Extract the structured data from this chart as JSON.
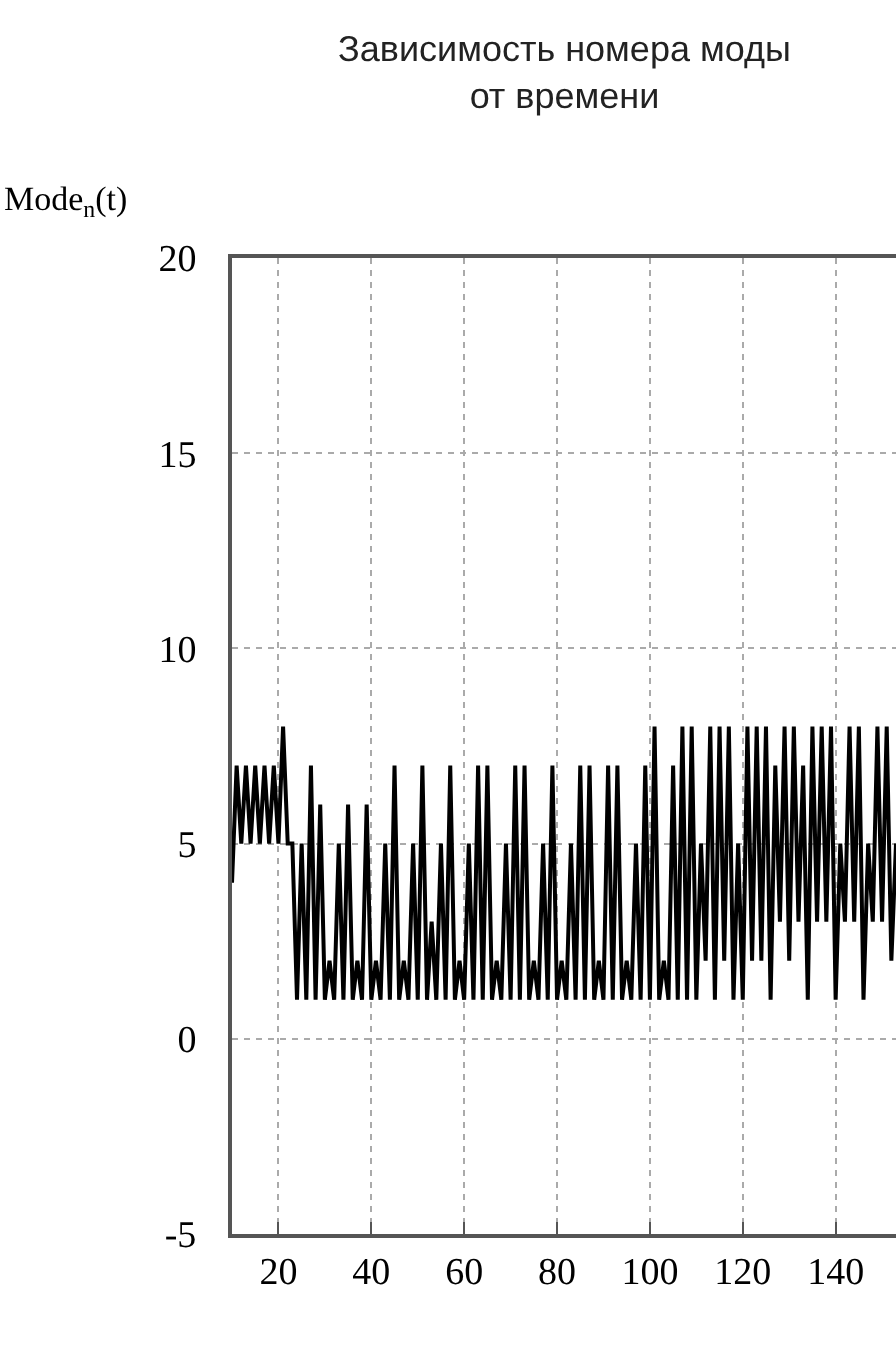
{
  "chart_data": {
    "type": "line",
    "title": "Зависимость номера моды\nот времени",
    "ylabel": "Mode$_{n}$(t)",
    "x": [
      10,
      11,
      12,
      13,
      14,
      15,
      16,
      17,
      18,
      19,
      20,
      21,
      22,
      23,
      24,
      25,
      26,
      27,
      28,
      29,
      30,
      31,
      32,
      33,
      34,
      35,
      36,
      37,
      38,
      39,
      40,
      41,
      42,
      43,
      44,
      45,
      46,
      47,
      48,
      49,
      50,
      51,
      52,
      53,
      54,
      55,
      56,
      57,
      58,
      59,
      60,
      61,
      62,
      63,
      64,
      65,
      66,
      67,
      68,
      69,
      70,
      71,
      72,
      73,
      74,
      75,
      76,
      77,
      78,
      79,
      80,
      81,
      82,
      83,
      84,
      85,
      86,
      87,
      88,
      89,
      90,
      91,
      92,
      93,
      94,
      95,
      96,
      97,
      98,
      99,
      100,
      101,
      102,
      103,
      104,
      105,
      106,
      107,
      108,
      109,
      110,
      111,
      112,
      113,
      114,
      115,
      116,
      117,
      118,
      119,
      120,
      121,
      122,
      123,
      124,
      125,
      126,
      127,
      128,
      129,
      130,
      131,
      132,
      133,
      134,
      135,
      136,
      137,
      138,
      139,
      140,
      141,
      142,
      143,
      144,
      145,
      146,
      147,
      148,
      149,
      150,
      151,
      152,
      153
    ],
    "series": [
      {
        "color": "#000000",
        "values": [
          4,
          7,
          5,
          7,
          5,
          7,
          5,
          7,
          5,
          7,
          5,
          8,
          5,
          5,
          1,
          5,
          1,
          7,
          1,
          6,
          1,
          2,
          1,
          5,
          1,
          6,
          1,
          2,
          1,
          6,
          1,
          2,
          1,
          5,
          1,
          7,
          1,
          2,
          1,
          5,
          1,
          7,
          1,
          3,
          1,
          5,
          1,
          7,
          1,
          2,
          1,
          5,
          1,
          7,
          1,
          7,
          1,
          2,
          1,
          5,
          1,
          7,
          1,
          7,
          1,
          2,
          1,
          5,
          1,
          7,
          1,
          2,
          1,
          5,
          1,
          7,
          1,
          7,
          1,
          2,
          1,
          7,
          1,
          7,
          1,
          2,
          1,
          5,
          1,
          7,
          1,
          8,
          1,
          2,
          1,
          7,
          1,
          8,
          1,
          8,
          1,
          5,
          2,
          8,
          1,
          8,
          2,
          8,
          1,
          5,
          1,
          8,
          2,
          8,
          2,
          8,
          1,
          7,
          3,
          8,
          2,
          8,
          3,
          7,
          1,
          8,
          3,
          8,
          3,
          8,
          1,
          5,
          3,
          8,
          3,
          8,
          1,
          5,
          3,
          8,
          3,
          8,
          2,
          5
        ]
      }
    ],
    "xlim": [
      10,
      153
    ],
    "ylim": [
      -5,
      20
    ],
    "xticks": [
      20,
      40,
      60,
      80,
      100,
      120,
      140
    ],
    "yticks": [
      -5,
      0,
      5,
      10,
      15,
      20
    ],
    "grid": true,
    "marker": "none",
    "line_style": "solid"
  }
}
